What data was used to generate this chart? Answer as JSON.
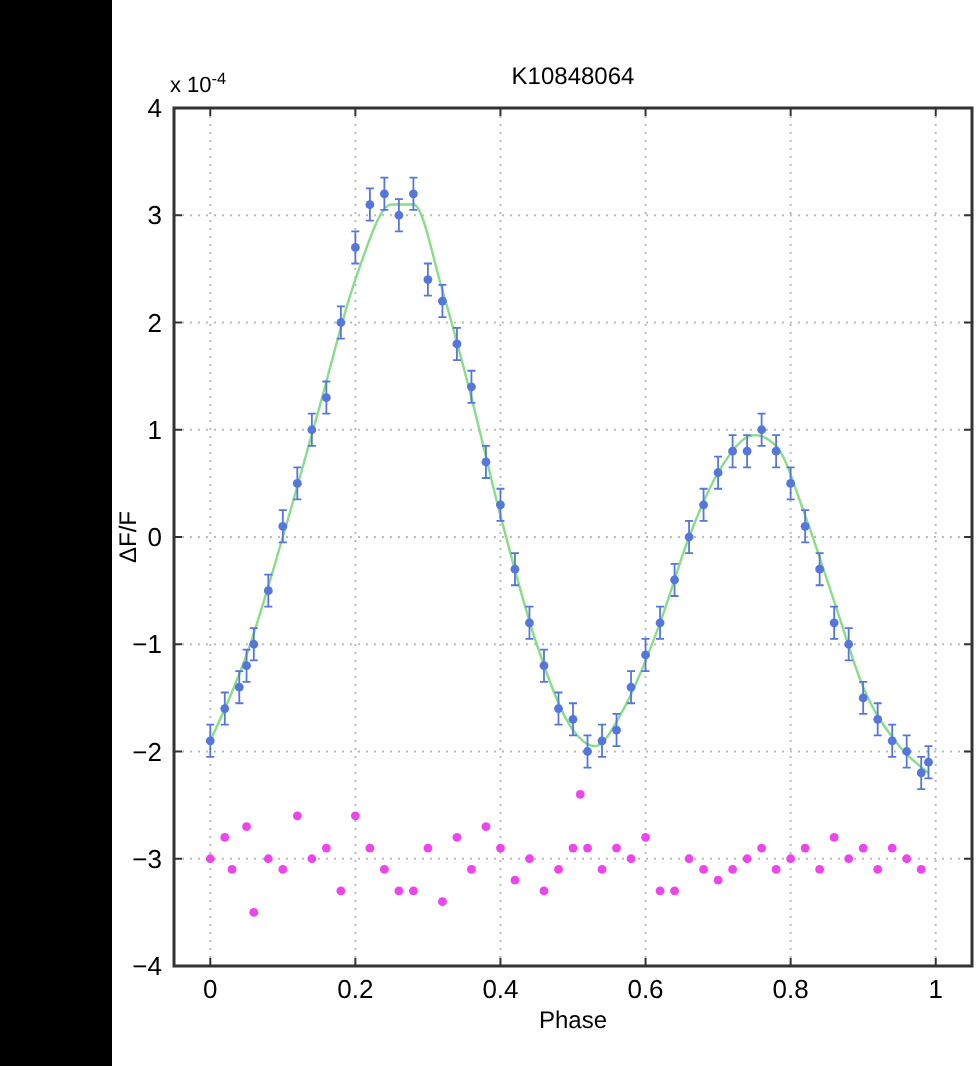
{
  "chart_data": {
    "type": "scatter",
    "title": "K10848064",
    "xlabel": "Phase",
    "ylabel": "ΔF/F",
    "annotations": [
      "x 10$^{-4}$"
    ],
    "xlim": [
      -0.05,
      1.05
    ],
    "xticks": [
      0,
      0.2,
      0.4,
      0.6,
      0.8,
      1
    ],
    "ylim": [
      -4,
      4
    ],
    "yticks": [
      -4,
      -3,
      -2,
      -1,
      0,
      1,
      2,
      3,
      4
    ],
    "grid": true,
    "marker": "circle",
    "series": [
      {
        "type": "line",
        "color": "#88dd88",
        "marker": "none",
        "x": [
          0,
          0.05,
          0.1,
          0.15,
          0.2,
          0.25,
          0.28,
          0.32,
          0.36,
          0.4,
          0.45,
          0.5,
          0.53,
          0.57,
          0.62,
          0.66,
          0.7,
          0.75,
          0.78,
          0.82,
          0.86,
          0.9,
          0.95,
          0.99
        ],
        "values": [
          -1.9,
          -1.1,
          0,
          1.2,
          2.4,
          3.1,
          3.1,
          2.3,
          1.3,
          0.2,
          -1.0,
          -1.8,
          -1.95,
          -1.6,
          -0.8,
          0,
          0.6,
          0.95,
          0.85,
          0.2,
          -0.6,
          -1.4,
          -1.95,
          -2.2
        ]
      },
      {
        "color": "#5577dd",
        "x": [
          0,
          0.02,
          0.04,
          0.05,
          0.06,
          0.08,
          0.1,
          0.12,
          0.14,
          0.16,
          0.18,
          0.2,
          0.22,
          0.24,
          0.26,
          0.28,
          0.3,
          0.32,
          0.34,
          0.36,
          0.38,
          0.4,
          0.42,
          0.44,
          0.46,
          0.48,
          0.5,
          0.52,
          0.54,
          0.56,
          0.58,
          0.6,
          0.62,
          0.64,
          0.66,
          0.68,
          0.7,
          0.72,
          0.74,
          0.76,
          0.78,
          0.8,
          0.82,
          0.84,
          0.86,
          0.88,
          0.9,
          0.92,
          0.94,
          0.96,
          0.98,
          0.99
        ],
        "values": [
          -1.9,
          -1.6,
          -1.4,
          -1.2,
          -1.0,
          -0.5,
          0.1,
          0.5,
          1.0,
          1.3,
          2.0,
          2.7,
          3.1,
          3.2,
          3.0,
          3.2,
          2.4,
          2.2,
          1.8,
          1.4,
          0.7,
          0.3,
          -0.3,
          -0.8,
          -1.2,
          -1.6,
          -1.7,
          -2.0,
          -1.9,
          -1.8,
          -1.4,
          -1.1,
          -0.8,
          -0.4,
          0,
          0.3,
          0.6,
          0.8,
          0.8,
          1.0,
          0.8,
          0.5,
          0.1,
          -0.3,
          -0.8,
          -1.0,
          -1.5,
          -1.7,
          -1.9,
          -2.0,
          -2.2,
          -2.1
        ],
        "errors": [
          0.15,
          0.15,
          0.15,
          0.15,
          0.15,
          0.15,
          0.15,
          0.15,
          0.15,
          0.15,
          0.15,
          0.15,
          0.15,
          0.15,
          0.15,
          0.15,
          0.15,
          0.15,
          0.15,
          0.15,
          0.15,
          0.15,
          0.15,
          0.15,
          0.15,
          0.15,
          0.15,
          0.15,
          0.15,
          0.15,
          0.15,
          0.15,
          0.15,
          0.15,
          0.15,
          0.15,
          0.15,
          0.15,
          0.15,
          0.15,
          0.15,
          0.15,
          0.15,
          0.15,
          0.15,
          0.15,
          0.15,
          0.15,
          0.15,
          0.15,
          0.15,
          0.15
        ]
      },
      {
        "color": "#ee44ee",
        "x": [
          0,
          0.02,
          0.03,
          0.05,
          0.06,
          0.08,
          0.1,
          0.12,
          0.14,
          0.16,
          0.18,
          0.2,
          0.22,
          0.24,
          0.26,
          0.28,
          0.3,
          0.32,
          0.34,
          0.36,
          0.38,
          0.4,
          0.42,
          0.44,
          0.46,
          0.48,
          0.5,
          0.51,
          0.52,
          0.54,
          0.56,
          0.58,
          0.6,
          0.62,
          0.64,
          0.66,
          0.68,
          0.7,
          0.72,
          0.74,
          0.76,
          0.78,
          0.8,
          0.82,
          0.84,
          0.86,
          0.88,
          0.9,
          0.92,
          0.94,
          0.96,
          0.98
        ],
        "values": [
          -3.0,
          -2.8,
          -3.1,
          -2.7,
          -3.5,
          -3.0,
          -3.1,
          -2.6,
          -3.0,
          -2.9,
          -3.3,
          -2.6,
          -2.9,
          -3.1,
          -3.3,
          -3.3,
          -2.9,
          -3.4,
          -2.8,
          -3.1,
          -2.7,
          -2.9,
          -3.2,
          -3.0,
          -3.3,
          -3.1,
          -2.9,
          -2.4,
          -2.9,
          -3.1,
          -2.9,
          -3.0,
          -2.8,
          -3.3,
          -3.3,
          -3.0,
          -3.1,
          -3.2,
          -3.1,
          -3.0,
          -2.9,
          -3.1,
          -3.0,
          -2.9,
          -3.1,
          -2.8,
          -3.0,
          -2.9,
          -3.1,
          -2.9,
          -3.0,
          -3.1
        ]
      }
    ]
  }
}
